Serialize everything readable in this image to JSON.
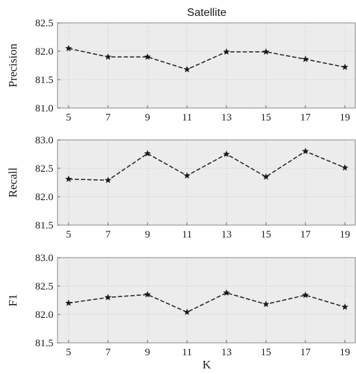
{
  "chart_data": [
    {
      "type": "line",
      "title": "Satellite",
      "xlabel": "",
      "ylabel": "Precision",
      "x": [
        5,
        7,
        9,
        11,
        13,
        15,
        17,
        19
      ],
      "x_tick_labels": [
        "5",
        "7",
        "9",
        "11",
        "13",
        "15",
        "17",
        "19"
      ],
      "ylim": [
        81.0,
        82.5
      ],
      "y_ticks": [
        81.0,
        81.5,
        82.0,
        82.5
      ],
      "y_tick_labels": [
        "81.0",
        "81.5",
        "82.0",
        "82.5"
      ],
      "grid": true,
      "series": [
        {
          "values": [
            82.05,
            81.9,
            81.9,
            81.68,
            81.99,
            81.99,
            81.86,
            81.72
          ],
          "marker": "star",
          "line_style": "dashed",
          "color": "#1a1a1a"
        }
      ]
    },
    {
      "type": "line",
      "title": "",
      "xlabel": "",
      "ylabel": "Recall",
      "x": [
        5,
        7,
        9,
        11,
        13,
        15,
        17,
        19
      ],
      "x_tick_labels": [
        "5",
        "7",
        "9",
        "11",
        "13",
        "15",
        "17",
        "19"
      ],
      "ylim": [
        81.5,
        83.0
      ],
      "y_ticks": [
        81.5,
        82.0,
        82.5,
        83.0
      ],
      "y_tick_labels": [
        "81.5",
        "82.0",
        "82.5",
        "83.0"
      ],
      "grid": true,
      "series": [
        {
          "values": [
            82.31,
            82.29,
            82.76,
            82.37,
            82.75,
            82.35,
            82.8,
            82.51
          ],
          "marker": "star",
          "line_style": "dashed",
          "color": "#1a1a1a"
        }
      ]
    },
    {
      "type": "line",
      "title": "",
      "xlabel": "K",
      "ylabel": "F1",
      "x": [
        5,
        7,
        9,
        11,
        13,
        15,
        17,
        19
      ],
      "x_tick_labels": [
        "5",
        "7",
        "9",
        "11",
        "13",
        "15",
        "17",
        "19"
      ],
      "ylim": [
        81.5,
        83.0
      ],
      "y_ticks": [
        81.5,
        82.0,
        82.5,
        83.0
      ],
      "y_tick_labels": [
        "81.5",
        "82.0",
        "82.5",
        "83.0"
      ],
      "grid": true,
      "series": [
        {
          "values": [
            82.2,
            82.3,
            82.35,
            82.04,
            82.38,
            82.18,
            82.34,
            82.13
          ],
          "marker": "star",
          "line_style": "dashed",
          "color": "#1a1a1a"
        }
      ]
    }
  ]
}
